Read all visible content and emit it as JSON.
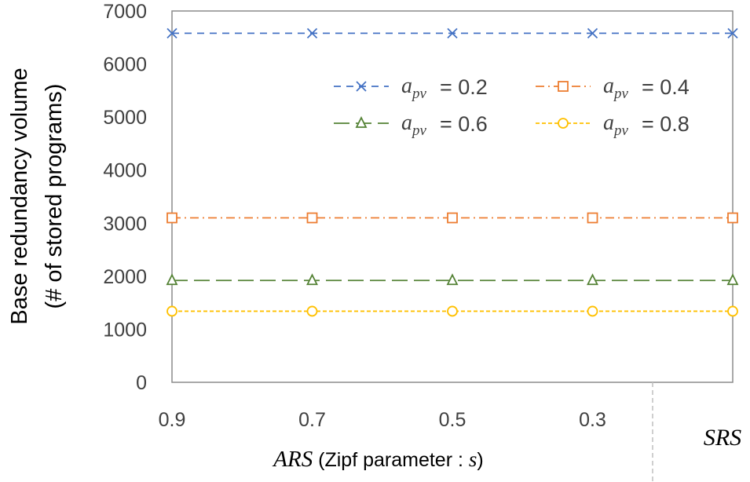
{
  "chart_data": {
    "type": "line",
    "title": "",
    "ylabel_line1": "Base redundancy volume",
    "ylabel_line2": "(# of stored programs)",
    "xlabel_italic": "ARS",
    "xlabel_text": " (Zipf parameter : ",
    "xlabel_var": "s",
    "xlabel_close": ")",
    "srs_label": "SRS",
    "categories": [
      "0.9",
      "0.7",
      "0.5",
      "0.3",
      ""
    ],
    "ylim": [
      0,
      7000
    ],
    "yticks": [
      "0",
      "1000",
      "2000",
      "3000",
      "4000",
      "5000",
      "6000",
      "7000"
    ],
    "legend_symbol": "a",
    "legend_subscript": "pv",
    "series": [
      {
        "name": "a_pv = 0.2",
        "value_label": "= 0.2",
        "values": [
          6580,
          6580,
          6580,
          6580,
          6580
        ],
        "color": "#4472C4",
        "marker": "x",
        "dash": "9,7"
      },
      {
        "name": "a_pv = 0.4",
        "value_label": "= 0.4",
        "values": [
          3100,
          3100,
          3100,
          3100,
          3100
        ],
        "color": "#ED7D31",
        "marker": "square",
        "dash": "11,5,2,5"
      },
      {
        "name": "a_pv = 0.6",
        "value_label": "= 0.6",
        "values": [
          1920,
          1920,
          1920,
          1920,
          1920
        ],
        "color": "#548235",
        "marker": "triangle",
        "dash": "20,8"
      },
      {
        "name": "a_pv = 0.8",
        "value_label": "= 0.8",
        "values": [
          1340,
          1340,
          1340,
          1340,
          1340
        ],
        "color": "#FFC000",
        "marker": "circle",
        "dash": "5,3"
      }
    ]
  }
}
